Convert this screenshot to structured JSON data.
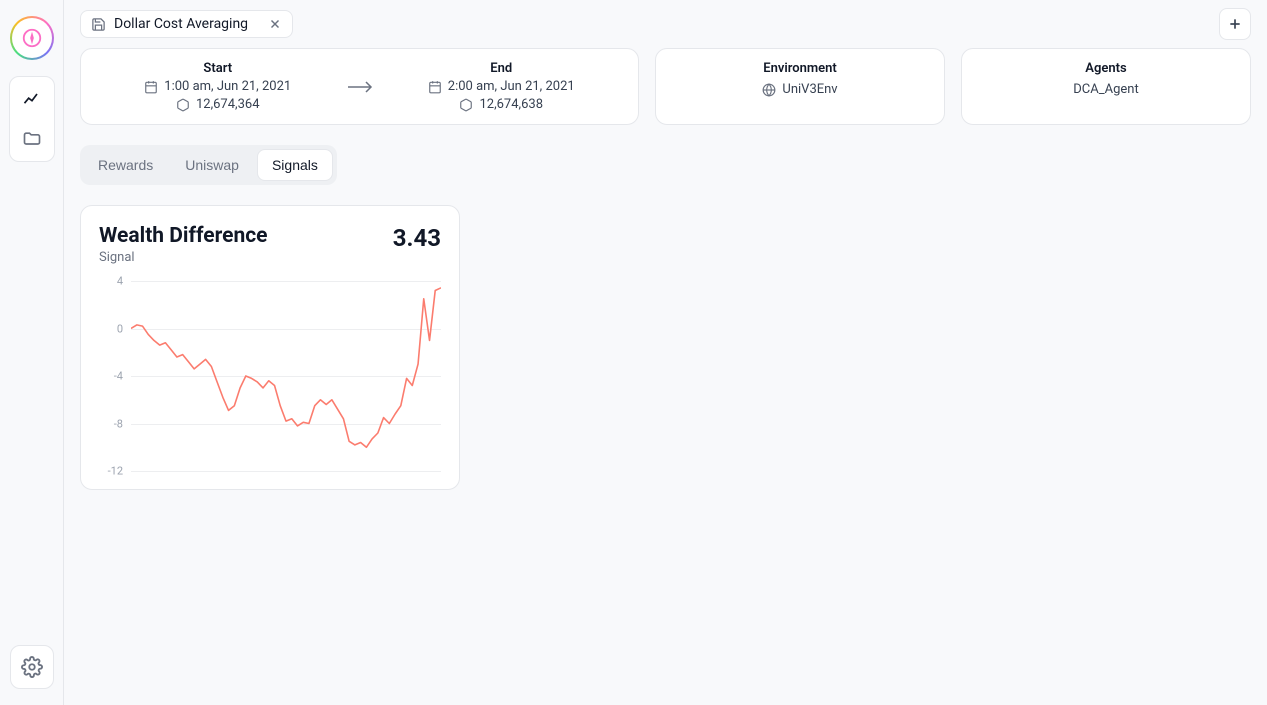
{
  "tab": {
    "label": "Dollar Cost Averaging"
  },
  "startend": {
    "start_label": "Start",
    "end_label": "End",
    "start_time": "1:00 am, Jun 21, 2021",
    "end_time": "2:00 am, Jun 21, 2021",
    "start_block": "12,674,364",
    "end_block": "12,674,638"
  },
  "env": {
    "label": "Environment",
    "value": "UniV3Env"
  },
  "agents": {
    "label": "Agents",
    "value": "DCA_Agent"
  },
  "tabs": {
    "rewards": "Rewards",
    "uniswap": "Uniswap",
    "signals": "Signals",
    "active": "signals"
  },
  "chart": {
    "title": "Wealth Difference",
    "subtitle": "Signal",
    "value": "3.43",
    "line_color": "#fb7c6e",
    "grid_color": "#edeef0",
    "text_color": "#9ca3af",
    "ylim": [
      -12,
      4
    ],
    "yticks": [
      4,
      0,
      -4,
      -8,
      -12
    ],
    "data": [
      0,
      0.3,
      0.2,
      -0.5,
      -1,
      -1.4,
      -1.2,
      -1.8,
      -2.4,
      -2.2,
      -2.8,
      -3.4,
      -3.0,
      -2.6,
      -3.2,
      -4.5,
      -5.8,
      -6.9,
      -6.5,
      -5.0,
      -4.0,
      -4.2,
      -4.5,
      -5.0,
      -4.4,
      -4.8,
      -6.5,
      -7.8,
      -7.6,
      -8.2,
      -7.9,
      -8.0,
      -6.5,
      -6.0,
      -6.4,
      -6.0,
      -6.8,
      -7.6,
      -9.5,
      -9.8,
      -9.6,
      -10.0,
      -9.3,
      -8.8,
      -7.5,
      -8.0,
      -7.2,
      -6.5,
      -4.2,
      -4.8,
      -3.0,
      2.5,
      -1.0,
      3.2,
      3.43
    ]
  },
  "colors": {
    "bg": "#f8f9fb",
    "border": "#e5e7eb",
    "text": "#111827",
    "muted": "#6b7280"
  }
}
